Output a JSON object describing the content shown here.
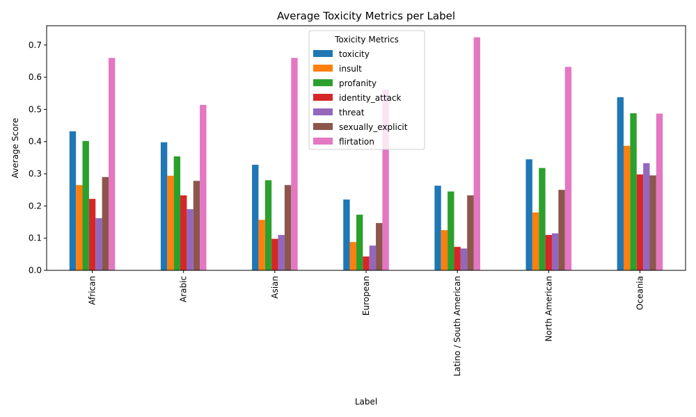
{
  "chart_data": {
    "type": "bar",
    "title": "Average Toxicity Metrics per Label",
    "xlabel": "Label",
    "ylabel": "Average Score",
    "ylim": [
      0,
      0.76
    ],
    "yticks": [
      0.0,
      0.1,
      0.2,
      0.3,
      0.4,
      0.5,
      0.6,
      0.7
    ],
    "ytick_labels": [
      "0.0",
      "0.1",
      "0.2",
      "0.3",
      "0.4",
      "0.5",
      "0.6",
      "0.7"
    ],
    "grid": false,
    "legend": {
      "title": "Toxicity Metrics",
      "placement": "top-center"
    },
    "categories": [
      "African",
      "Arabic",
      "Asian",
      "European",
      "Latino / South American",
      "North American",
      "Oceania"
    ],
    "series": [
      {
        "name": "toxicity",
        "color": "#1f77b4",
        "values": [
          0.432,
          0.398,
          0.328,
          0.22,
          0.263,
          0.345,
          0.538
        ]
      },
      {
        "name": "insult",
        "color": "#ff7f0e",
        "values": [
          0.265,
          0.294,
          0.157,
          0.088,
          0.125,
          0.18,
          0.387
        ]
      },
      {
        "name": "profanity",
        "color": "#2ca02c",
        "values": [
          0.402,
          0.354,
          0.28,
          0.173,
          0.245,
          0.318,
          0.488
        ]
      },
      {
        "name": "identity_attack",
        "color": "#d62728",
        "values": [
          0.222,
          0.233,
          0.098,
          0.043,
          0.073,
          0.11,
          0.298
        ]
      },
      {
        "name": "threat",
        "color": "#9467bd",
        "values": [
          0.162,
          0.19,
          0.11,
          0.077,
          0.068,
          0.115,
          0.333
        ]
      },
      {
        "name": "sexually_explicit",
        "color": "#8c564b",
        "values": [
          0.29,
          0.278,
          0.265,
          0.147,
          0.233,
          0.25,
          0.295
        ]
      },
      {
        "name": "flirtation",
        "color": "#e377c2",
        "values": [
          0.66,
          0.514,
          0.66,
          0.562,
          0.724,
          0.632,
          0.487
        ]
      }
    ]
  }
}
